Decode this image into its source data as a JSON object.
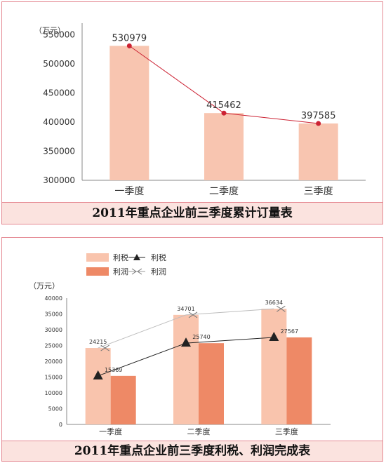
{
  "chart_data": [
    {
      "type": "bar",
      "title": "2011年重点企业前三季度累计订量表",
      "unit_label": "（万元）",
      "categories": [
        "一季度",
        "二季度",
        "三季度"
      ],
      "values": [
        530979,
        415462,
        397585
      ],
      "value_labels": [
        "530979",
        "415462",
        "397585"
      ],
      "y_ticks": [
        "550000",
        "500000",
        "450000",
        "400000",
        "350000",
        "300000"
      ],
      "y_tick_values": [
        550000,
        500000,
        450000,
        400000,
        350000,
        300000
      ],
      "ylim": [
        300000,
        570000
      ],
      "overlay_line": true,
      "colors": {
        "bar": "#f8c5b0",
        "line": "#cc2233",
        "point": "#cc2233"
      }
    },
    {
      "type": "bar",
      "title": "2011年重点企业前三季度利税、利润完成表",
      "unit_label": "（万元）",
      "categories": [
        "一季度",
        "二季度",
        "三季度"
      ],
      "legend": [
        "利税",
        "利税",
        "利润",
        "利润"
      ],
      "series": [
        {
          "name": "利税",
          "values": [
            24215,
            34701,
            36634
          ],
          "labels": [
            "24215",
            "34701",
            "36634"
          ]
        },
        {
          "name": "利润",
          "values": [
            15369,
            25740,
            27567
          ],
          "labels": [
            "15369",
            "25740",
            "27567"
          ]
        }
      ],
      "y_ticks": [
        "40000",
        "35000",
        "30000",
        "25000",
        "20000",
        "15000",
        "10000",
        "5000",
        "0"
      ],
      "y_tick_values": [
        40000,
        35000,
        30000,
        25000,
        20000,
        15000,
        10000,
        5000,
        0
      ],
      "ylim": [
        0,
        40000
      ],
      "colors": {
        "bar1": "#f9c4ad",
        "bar2": "#ee8966",
        "line1": "#bdbdbd",
        "line2": "#222222"
      }
    }
  ]
}
